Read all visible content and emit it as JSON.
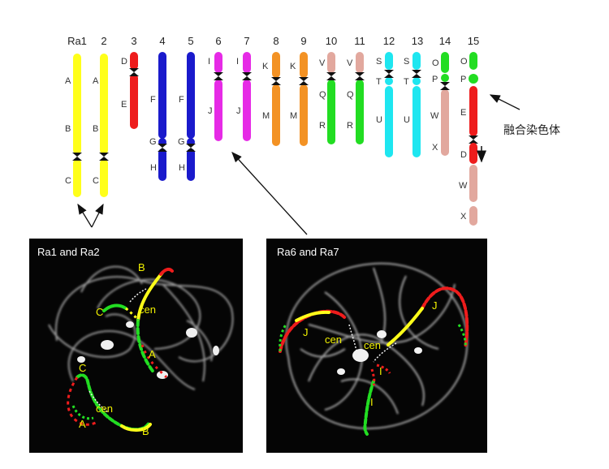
{
  "chromosomes": [
    {
      "id": "Ra1",
      "label": "Ra1",
      "color": "#ffff1a",
      "arms": [
        "A",
        "B",
        "C"
      ]
    },
    {
      "id": "2",
      "label": "2",
      "color": "#ffff1a",
      "arms": [
        "A",
        "B",
        "C"
      ]
    },
    {
      "id": "3",
      "label": "3",
      "color": "#ee1c1c",
      "arms": [
        "D",
        "E"
      ]
    },
    {
      "id": "4",
      "label": "4",
      "color": "#1a1acc",
      "arms": [
        "F",
        "G",
        "H"
      ]
    },
    {
      "id": "5",
      "label": "5",
      "color": "#1a1acc",
      "arms": [
        "F",
        "G",
        "H"
      ]
    },
    {
      "id": "6",
      "label": "6",
      "color": "#e62ae6",
      "arms": [
        "I",
        "J"
      ]
    },
    {
      "id": "7",
      "label": "7",
      "color": "#e62ae6",
      "arms": [
        "I",
        "J"
      ]
    },
    {
      "id": "8",
      "label": "8",
      "color": "#f39224",
      "arms": [
        "K",
        "M"
      ]
    },
    {
      "id": "9",
      "label": "9",
      "color": "#f39224",
      "arms": [
        "K",
        "M"
      ]
    },
    {
      "id": "10",
      "label": "10",
      "color": "#e2a89e",
      "arms": [
        "V",
        "Q",
        "R"
      ]
    },
    {
      "id": "11",
      "label": "11",
      "color": "#e2a89e",
      "arms": [
        "V",
        "Q",
        "R"
      ]
    },
    {
      "id": "12",
      "label": "12",
      "color": "#1ee6f0",
      "arms": [
        "S",
        "T",
        "U"
      ]
    },
    {
      "id": "13",
      "label": "13",
      "color": "#1ee6f0",
      "arms": [
        "S",
        "T",
        "U"
      ]
    },
    {
      "id": "14",
      "label": "14",
      "color": "#e2a89e",
      "arms": [
        "O",
        "P",
        "W",
        "X"
      ]
    },
    {
      "id": "15",
      "label": "15",
      "color": "#ee1c1c",
      "arms": [
        "O",
        "P",
        "E",
        "D",
        "W",
        "X"
      ]
    }
  ],
  "segment_colors": {
    "green": "#22dd22",
    "yellow": "#ffff1a",
    "red": "#ee1c1c",
    "pink": "#e2a89e",
    "blue": "#1a1acc"
  },
  "fusion_label": "融合染色体",
  "panels": [
    {
      "title": "Ra1 and Ra2",
      "labels": [
        "B",
        "C",
        "cen",
        "A",
        "C",
        "cen",
        "A",
        "B"
      ]
    },
    {
      "title": "Ra6 and Ra7",
      "labels": [
        "J",
        "J",
        "cen",
        "cen",
        "I",
        "I"
      ]
    }
  ]
}
